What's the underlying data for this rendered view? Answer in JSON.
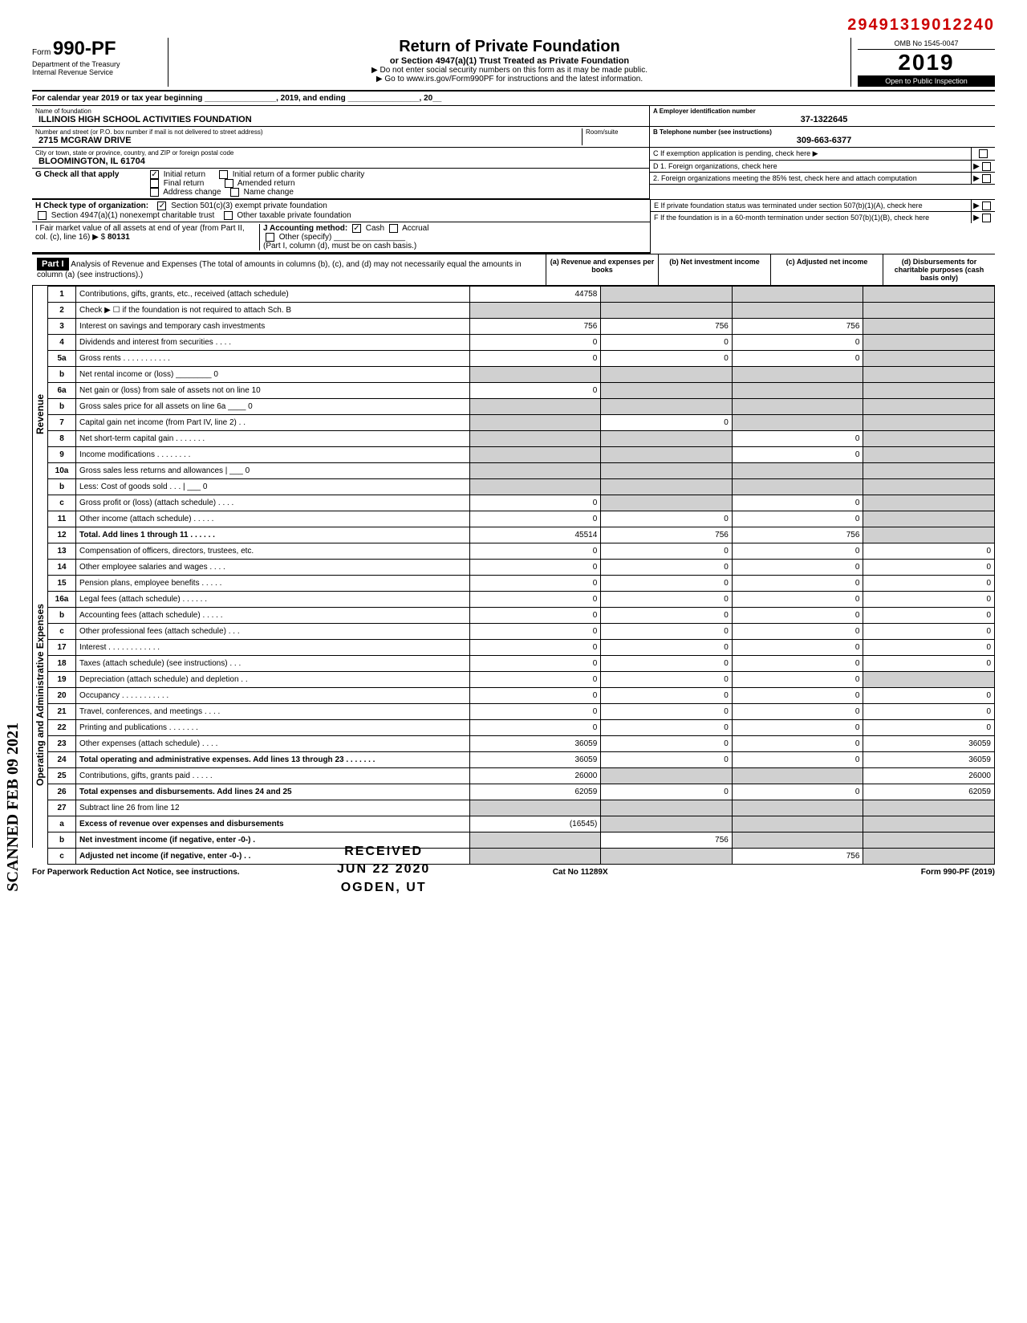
{
  "header": {
    "top_number": "29491319012240",
    "form_prefix": "Form",
    "form_number": "990-PF",
    "dept": "Department of the Treasury",
    "irs": "Internal Revenue Service",
    "main_title": "Return of Private Foundation",
    "sub_title": "or Section 4947(a)(1) Trust Treated as Private Foundation",
    "warn": "▶ Do not enter social security numbers on this form as it may be made public.",
    "goto": "▶ Go to www.irs.gov/Form990PF for instructions and the latest information.",
    "omb": "OMB No 1545-0047",
    "year": "2019",
    "inspection": "Open to Public Inspection"
  },
  "calendar": "For calendar year 2019 or tax year beginning ________________, 2019, and ending ________________, 20__",
  "foundation": {
    "name_label": "Name of foundation",
    "name": "ILLINOIS HIGH SCHOOL ACTIVITIES FOUNDATION",
    "addr_label": "Number and street (or P.O. box number if mail is not delivered to street address)",
    "address": "2715 MCGRAW DRIVE",
    "city_label": "City or town, state or province, country, and ZIP or foreign postal code",
    "city": "BLOOMINGTON, IL 61704",
    "room_label": "Room/suite"
  },
  "right_info": {
    "a_label": "A Employer identification number",
    "a_value": "37-1322645",
    "b_label": "B Telephone number (see instructions)",
    "b_value": "309-663-6377",
    "c_label": "C If exemption application is pending, check here ▶",
    "d1_label": "D 1. Foreign organizations, check here",
    "d2_label": "2. Foreign organizations meeting the 85% test, check here and attach computation",
    "e_label": "E If private foundation status was terminated under section 507(b)(1)(A), check here",
    "f_label": "F If the foundation is in a 60-month termination under section 507(b)(1)(B), check here"
  },
  "section_g": {
    "label": "G Check all that apply",
    "initial": "Initial return",
    "initial_former": "Initial return of a former public charity",
    "final": "Final return",
    "amended": "Amended return",
    "addr_change": "Address change",
    "name_change": "Name change"
  },
  "section_h": {
    "label": "H Check type of organization:",
    "opt1": "Section 501(c)(3) exempt private foundation",
    "opt2": "Section 4947(a)(1) nonexempt charitable trust",
    "opt3": "Other taxable private foundation"
  },
  "section_i": {
    "label": "I Fair market value of all assets at end of year (from Part II, col. (c), line 16) ▶ $",
    "value": "80131",
    "j_label": "J Accounting method:",
    "cash": "Cash",
    "accrual": "Accrual",
    "other": "Other (specify)",
    "note": "(Part I, column (d), must be on cash basis.)"
  },
  "part1": {
    "label": "Part I",
    "desc": "Analysis of Revenue and Expenses (The total of amounts in columns (b), (c), and (d) may not necessarily equal the amounts in column (a) (see instructions).)",
    "col_a": "(a) Revenue and expenses per books",
    "col_b": "(b) Net investment income",
    "col_c": "(c) Adjusted net income",
    "col_d": "(d) Disbursements for charitable purposes (cash basis only)"
  },
  "revenue_label": "Revenue",
  "expenses_label": "Operating and Administrative Expenses",
  "rows": [
    {
      "n": "1",
      "desc": "Contributions, gifts, grants, etc., received (attach schedule)",
      "a": "44758",
      "b": "",
      "c": "",
      "d": "",
      "shade_b": true,
      "shade_c": true,
      "shade_d": true
    },
    {
      "n": "2",
      "desc": "Check ▶ ☐ if the foundation is not required to attach Sch. B",
      "a": "",
      "b": "",
      "c": "",
      "d": "",
      "shade_a": true,
      "shade_b": true,
      "shade_c": true,
      "shade_d": true
    },
    {
      "n": "3",
      "desc": "Interest on savings and temporary cash investments",
      "a": "756",
      "b": "756",
      "c": "756",
      "d": "",
      "shade_d": true
    },
    {
      "n": "4",
      "desc": "Dividends and interest from securities . . . .",
      "a": "0",
      "b": "0",
      "c": "0",
      "d": "",
      "shade_d": true
    },
    {
      "n": "5a",
      "desc": "Gross rents . . . . . . . . . . .",
      "a": "0",
      "b": "0",
      "c": "0",
      "d": "",
      "shade_d": true
    },
    {
      "n": "b",
      "desc": "Net rental income or (loss) ________ 0",
      "a": "",
      "b": "",
      "c": "",
      "d": "",
      "shade_a": true,
      "shade_b": true,
      "shade_c": true,
      "shade_d": true
    },
    {
      "n": "6a",
      "desc": "Net gain or (loss) from sale of assets not on line 10",
      "a": "0",
      "b": "",
      "c": "",
      "d": "",
      "shade_b": true,
      "shade_c": true,
      "shade_d": true
    },
    {
      "n": "b",
      "desc": "Gross sales price for all assets on line 6a ____ 0",
      "a": "",
      "b": "",
      "c": "",
      "d": "",
      "shade_a": true,
      "shade_b": true,
      "shade_c": true,
      "shade_d": true
    },
    {
      "n": "7",
      "desc": "Capital gain net income (from Part IV, line 2) . .",
      "a": "",
      "b": "0",
      "c": "",
      "d": "",
      "shade_a": true,
      "shade_c": true,
      "shade_d": true
    },
    {
      "n": "8",
      "desc": "Net short-term capital gain . . . . . . .",
      "a": "",
      "b": "",
      "c": "0",
      "d": "",
      "shade_a": true,
      "shade_b": true,
      "shade_d": true
    },
    {
      "n": "9",
      "desc": "Income modifications . . . . . . . .",
      "a": "",
      "b": "",
      "c": "0",
      "d": "",
      "shade_a": true,
      "shade_b": true,
      "shade_d": true
    },
    {
      "n": "10a",
      "desc": "Gross sales less returns and allowances | ___ 0",
      "a": "",
      "b": "",
      "c": "",
      "d": "",
      "shade_a": true,
      "shade_b": true,
      "shade_c": true,
      "shade_d": true
    },
    {
      "n": "b",
      "desc": "Less: Cost of goods sold . . . | ___ 0",
      "a": "",
      "b": "",
      "c": "",
      "d": "",
      "shade_a": true,
      "shade_b": true,
      "shade_c": true,
      "shade_d": true
    },
    {
      "n": "c",
      "desc": "Gross profit or (loss) (attach schedule) . . . .",
      "a": "0",
      "b": "",
      "c": "0",
      "d": "",
      "shade_b": true,
      "shade_d": true
    },
    {
      "n": "11",
      "desc": "Other income (attach schedule) . . . . .",
      "a": "0",
      "b": "0",
      "c": "0",
      "d": "",
      "shade_d": true
    },
    {
      "n": "12",
      "desc": "Total. Add lines 1 through 11 . . . . . .",
      "a": "45514",
      "b": "756",
      "c": "756",
      "d": "",
      "bold": true,
      "shade_d": true
    },
    {
      "n": "13",
      "desc": "Compensation of officers, directors, trustees, etc.",
      "a": "0",
      "b": "0",
      "c": "0",
      "d": "0"
    },
    {
      "n": "14",
      "desc": "Other employee salaries and wages . . . .",
      "a": "0",
      "b": "0",
      "c": "0",
      "d": "0"
    },
    {
      "n": "15",
      "desc": "Pension plans, employee benefits . . . . .",
      "a": "0",
      "b": "0",
      "c": "0",
      "d": "0"
    },
    {
      "n": "16a",
      "desc": "Legal fees (attach schedule) . . . . . .",
      "a": "0",
      "b": "0",
      "c": "0",
      "d": "0"
    },
    {
      "n": "b",
      "desc": "Accounting fees (attach schedule) . . . . .",
      "a": "0",
      "b": "0",
      "c": "0",
      "d": "0"
    },
    {
      "n": "c",
      "desc": "Other professional fees (attach schedule) . . .",
      "a": "0",
      "b": "0",
      "c": "0",
      "d": "0"
    },
    {
      "n": "17",
      "desc": "Interest . . . . . . . . . . . .",
      "a": "0",
      "b": "0",
      "c": "0",
      "d": "0"
    },
    {
      "n": "18",
      "desc": "Taxes (attach schedule) (see instructions) . . .",
      "a": "0",
      "b": "0",
      "c": "0",
      "d": "0"
    },
    {
      "n": "19",
      "desc": "Depreciation (attach schedule) and depletion . .",
      "a": "0",
      "b": "0",
      "c": "0",
      "d": "",
      "shade_d": true
    },
    {
      "n": "20",
      "desc": "Occupancy . . . . . . . . . . .",
      "a": "0",
      "b": "0",
      "c": "0",
      "d": "0"
    },
    {
      "n": "21",
      "desc": "Travel, conferences, and meetings . . . .",
      "a": "0",
      "b": "0",
      "c": "0",
      "d": "0"
    },
    {
      "n": "22",
      "desc": "Printing and publications . . . . . . .",
      "a": "0",
      "b": "0",
      "c": "0",
      "d": "0"
    },
    {
      "n": "23",
      "desc": "Other expenses (attach schedule) . . . .",
      "a": "36059",
      "b": "0",
      "c": "0",
      "d": "36059"
    },
    {
      "n": "24",
      "desc": "Total operating and administrative expenses. Add lines 13 through 23 . . . . . . .",
      "a": "36059",
      "b": "0",
      "c": "0",
      "d": "36059",
      "bold": true
    },
    {
      "n": "25",
      "desc": "Contributions, gifts, grants paid . . . . .",
      "a": "26000",
      "b": "",
      "c": "",
      "d": "26000",
      "shade_b": true,
      "shade_c": true
    },
    {
      "n": "26",
      "desc": "Total expenses and disbursements. Add lines 24 and 25",
      "a": "62059",
      "b": "0",
      "c": "0",
      "d": "62059",
      "bold": true
    },
    {
      "n": "27",
      "desc": "Subtract line 26 from line 12",
      "a": "",
      "b": "",
      "c": "",
      "d": "",
      "shade_a": true,
      "shade_b": true,
      "shade_c": true,
      "shade_d": true
    },
    {
      "n": "a",
      "desc": "Excess of revenue over expenses and disbursements",
      "a": "(16545)",
      "b": "",
      "c": "",
      "d": "",
      "bold": true,
      "shade_b": true,
      "shade_c": true,
      "shade_d": true
    },
    {
      "n": "b",
      "desc": "Net investment income (if negative, enter -0-) .",
      "a": "",
      "b": "756",
      "c": "",
      "d": "",
      "bold": true,
      "shade_a": true,
      "shade_c": true,
      "shade_d": true
    },
    {
      "n": "c",
      "desc": "Adjusted net income (if negative, enter -0-) . .",
      "a": "",
      "b": "",
      "c": "756",
      "d": "",
      "bold": true,
      "shade_a": true,
      "shade_b": true,
      "shade_d": true
    }
  ],
  "footer": {
    "left": "For Paperwork Reduction Act Notice, see instructions.",
    "center": "Cat No 11289X",
    "right": "Form 990-PF (2019)"
  },
  "stamp": {
    "received": "RECEIVED",
    "date": "JUN 22 2020",
    "location": "OGDEN, UT"
  },
  "scanned": "SCANNED FEB 09 2021"
}
